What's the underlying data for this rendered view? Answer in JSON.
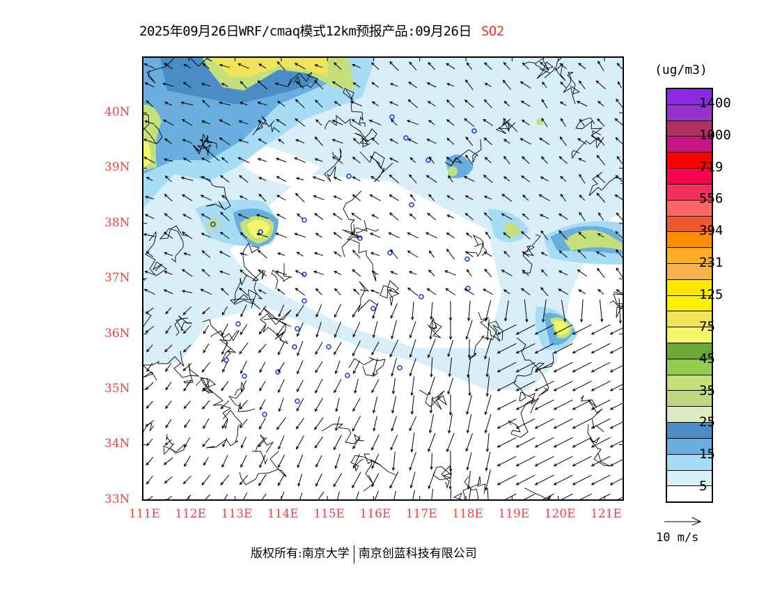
{
  "title": {
    "main": "2025年09月26日WRF/cmaq模式12km预报产品:09月26日",
    "species": "SO2"
  },
  "colorbar": {
    "unit": "(ug/m3)",
    "colors": [
      "#8a2be2",
      "#9932cc",
      "#b03060",
      "#c71585",
      "#ff0000",
      "#f5054f",
      "#f5305a",
      "#ff6666",
      "#ee5a2e",
      "#ff8c00",
      "#ffad22",
      "#f5b54a",
      "#ffe800",
      "#fff000",
      "#f2e45a",
      "#f5f56a",
      "#6aa838",
      "#92cc50",
      "#c4e07a",
      "#c2d880",
      "#dfeac0",
      "#4a8cc4",
      "#6aaee0",
      "#a6dcf6",
      "#d8effa",
      "#ffffff"
    ],
    "labels": [
      "1400",
      "1000",
      "719",
      "556",
      "394",
      "231",
      "125",
      "75",
      "45",
      "35",
      "25",
      "15",
      "5"
    ]
  },
  "wind_reference": {
    "label": "10 m/s"
  },
  "axes": {
    "lon_labels": [
      "111E",
      "112E",
      "113E",
      "114E",
      "115E",
      "116E",
      "117E",
      "118E",
      "119E",
      "120E",
      "121E"
    ],
    "lat_labels": [
      "40N",
      "39N",
      "38N",
      "37N",
      "36N",
      "35N",
      "34N",
      "33N"
    ]
  },
  "copyright": {
    "left": "版权所有:南京大学",
    "right": "南京创蓝科技有限公司"
  }
}
